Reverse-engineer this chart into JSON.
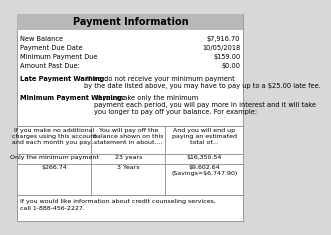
{
  "title": "Payment Information",
  "title_bg": "#b8b8b8",
  "title_color": "#000000",
  "bg_color": "#d8d8d8",
  "inner_bg": "#ffffff",
  "fields": [
    [
      "New Balance",
      "$7,916.70"
    ],
    [
      "Payment Due Date",
      "10/05/2018"
    ],
    [
      "Minimum Payment Due",
      "$159.00"
    ],
    [
      "Amount Past Due:",
      "$0.00"
    ]
  ],
  "late_bold": "Late Payment Warning:",
  "late_rest": " If we do not receive your minimum payment by the date listed above, you may have to pay up to a $25.00 late fee.",
  "min_bold": "Minimum Payment Warning:",
  "min_rest": " If you make only the minimum payment each period, you will pay more in interest and it will take you longer to pay off your balance. For example:",
  "table_headers": [
    "If you make no additional\ncharges using this account\nand each month you pay...",
    "You will pay off the\nbalance shown on this\nstatement in about....",
    "And you will end up\npaying an estimated\ntotal of..."
  ],
  "table_row1": [
    "Only the minimum payment",
    "23 years",
    "$16,350.54"
  ],
  "table_row2": [
    "$266.74",
    "3 Years",
    "$9,602.64\n(Savings=$6,747.90)"
  ],
  "footer_line1": "If you would like information about credit counseling services,",
  "footer_line2": "call 1-888-456-2227.",
  "fs": 4.8,
  "title_fs": 7.0,
  "table_fs": 4.5
}
